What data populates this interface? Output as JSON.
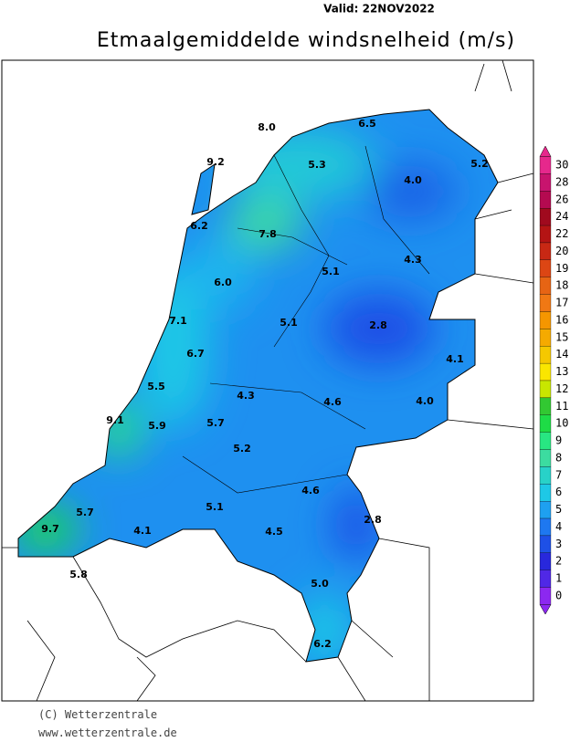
{
  "header": {
    "valid": "Valid: 22NOV2022",
    "title": "Etmaalgemiddelde windsnelheid (m/s)"
  },
  "stations": [
    "8.0",
    "6.5",
    "9.2",
    "5.3",
    "4.0",
    "5.2",
    "6.2",
    "7.8",
    "4.3",
    "5.1",
    "6.0",
    "5.1",
    "2.8",
    "7.1",
    "6.7",
    "4.1",
    "5.5",
    "4.3",
    "4.6",
    "4.0",
    "9.1",
    "5.9",
    "5.7",
    "5.2",
    "4.6",
    "5.7",
    "5.1",
    "2.8",
    "9.7",
    "4.1",
    "4.5",
    "5.8",
    "5.0",
    "6.2"
  ],
  "legend": [
    {
      "label": 30,
      "color": "#e6288c"
    },
    {
      "label": 28,
      "color": "#c8146e"
    },
    {
      "label": 26,
      "color": "#b40a50"
    },
    {
      "label": 24,
      "color": "#a00a1e"
    },
    {
      "label": 22,
      "color": "#b41414"
    },
    {
      "label": 20,
      "color": "#c82814"
    },
    {
      "label": 19,
      "color": "#dc4614"
    },
    {
      "label": 18,
      "color": "#e66414"
    },
    {
      "label": 17,
      "color": "#f07814"
    },
    {
      "label": 16,
      "color": "#f59600"
    },
    {
      "label": 15,
      "color": "#f5aa00"
    },
    {
      "label": 14,
      "color": "#f5c800"
    },
    {
      "label": 13,
      "color": "#fae600"
    },
    {
      "label": 12,
      "color": "#c8e600"
    },
    {
      "label": 11,
      "color": "#32c832"
    },
    {
      "label": 10,
      "color": "#1edc46"
    },
    {
      "label": 9,
      "color": "#28e682"
    },
    {
      "label": 8,
      "color": "#3cdca0"
    },
    {
      "label": 7,
      "color": "#28d2c8"
    },
    {
      "label": 6,
      "color": "#1ec8e6"
    },
    {
      "label": 5,
      "color": "#1ea0f0"
    },
    {
      "label": 4,
      "color": "#1e78f0"
    },
    {
      "label": 3,
      "color": "#1e50e6"
    },
    {
      "label": 2,
      "color": "#2828dc"
    },
    {
      "label": 1,
      "color": "#5028e6"
    },
    {
      "label": 0,
      "color": "#8c28f0"
    }
  ],
  "footer": {
    "copyright": "(C) Wetterzentrale",
    "url": "www.wetterzentrale.de"
  }
}
